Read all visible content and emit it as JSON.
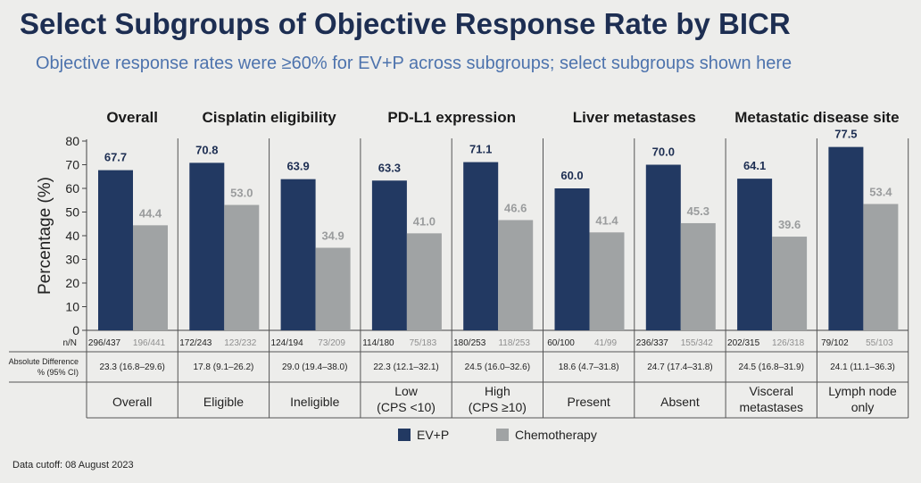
{
  "title": "Select Subgroups of Objective Response Rate by BICR",
  "subtitle": "Objective response rates were ≥60% for EV+P across subgroups; select subgroups shown here",
  "footnote": "Data cutoff: 08 August 2023",
  "colors": {
    "ev_p": "#223962",
    "chemo": "#a0a3a4"
  },
  "chart_data": {
    "type": "bar",
    "ylabel": "Percentage (%)",
    "ylim": [
      0,
      80
    ],
    "yticks": [
      0,
      10,
      20,
      30,
      40,
      50,
      60,
      70,
      80
    ],
    "legend": {
      "position": "bottom",
      "entries": [
        "EV+P",
        "Chemotherapy"
      ]
    },
    "row_labels": {
      "nN": "n/N",
      "diff_line1": "Absolute Difference",
      "diff_line2": "% (95% CI)"
    },
    "groups": [
      {
        "title": "Overall",
        "categories": [
          0
        ]
      },
      {
        "title": "Cisplatin eligibility",
        "categories": [
          1,
          2
        ]
      },
      {
        "title": "PD-L1 expression",
        "categories": [
          3,
          4
        ]
      },
      {
        "title": "Liver metastases",
        "categories": [
          5,
          6
        ]
      },
      {
        "title": "Metastatic disease site",
        "categories": [
          7,
          8
        ]
      }
    ],
    "categories": [
      {
        "label_lines": [
          "Overall"
        ],
        "evp_nN": "296/437",
        "chemo_nN": "196/441",
        "diff": "23.3 (16.8–29.6)"
      },
      {
        "label_lines": [
          "Eligible"
        ],
        "evp_nN": "172/243",
        "chemo_nN": "123/232",
        "diff": "17.8 (9.1–26.2)"
      },
      {
        "label_lines": [
          "Ineligible"
        ],
        "evp_nN": "124/194",
        "chemo_nN": "73/209",
        "diff": "29.0 (19.4–38.0)"
      },
      {
        "label_lines": [
          "Low",
          "(CPS <10)"
        ],
        "evp_nN": "114/180",
        "chemo_nN": "75/183",
        "diff": "22.3 (12.1–32.1)"
      },
      {
        "label_lines": [
          "High",
          "(CPS ≥10)"
        ],
        "evp_nN": "180/253",
        "chemo_nN": "118/253",
        "diff": "24.5 (16.0–32.6)"
      },
      {
        "label_lines": [
          "Present"
        ],
        "evp_nN": "60/100",
        "chemo_nN": "41/99",
        "diff": "18.6 (4.7–31.8)"
      },
      {
        "label_lines": [
          "Absent"
        ],
        "evp_nN": "236/337",
        "chemo_nN": "155/342",
        "diff": "24.7 (17.4–31.8)"
      },
      {
        "label_lines": [
          "Visceral",
          "metastases"
        ],
        "evp_nN": "202/315",
        "chemo_nN": "126/318",
        "diff": "24.5 (16.8–31.9)"
      },
      {
        "label_lines": [
          "Lymph node",
          "only"
        ],
        "evp_nN": "79/102",
        "chemo_nN": "55/103",
        "diff": "24.1 (11.1–36.3)"
      }
    ],
    "series": [
      {
        "name": "EV+P",
        "values": [
          67.7,
          70.8,
          63.9,
          63.3,
          71.1,
          60.0,
          70.0,
          64.1,
          77.5
        ],
        "labels": [
          "67.7",
          "70.8",
          "63.9",
          "63.3",
          "71.1",
          "60.0",
          "70.0",
          "64.1",
          "77.5"
        ]
      },
      {
        "name": "Chemotherapy",
        "values": [
          44.4,
          53.0,
          34.9,
          41.0,
          46.6,
          41.4,
          45.3,
          39.6,
          53.4
        ],
        "labels": [
          "44.4",
          "53.0",
          "34.9",
          "41.0",
          "46.6",
          "41.4",
          "45.3",
          "39.6",
          "53.4"
        ]
      }
    ]
  }
}
